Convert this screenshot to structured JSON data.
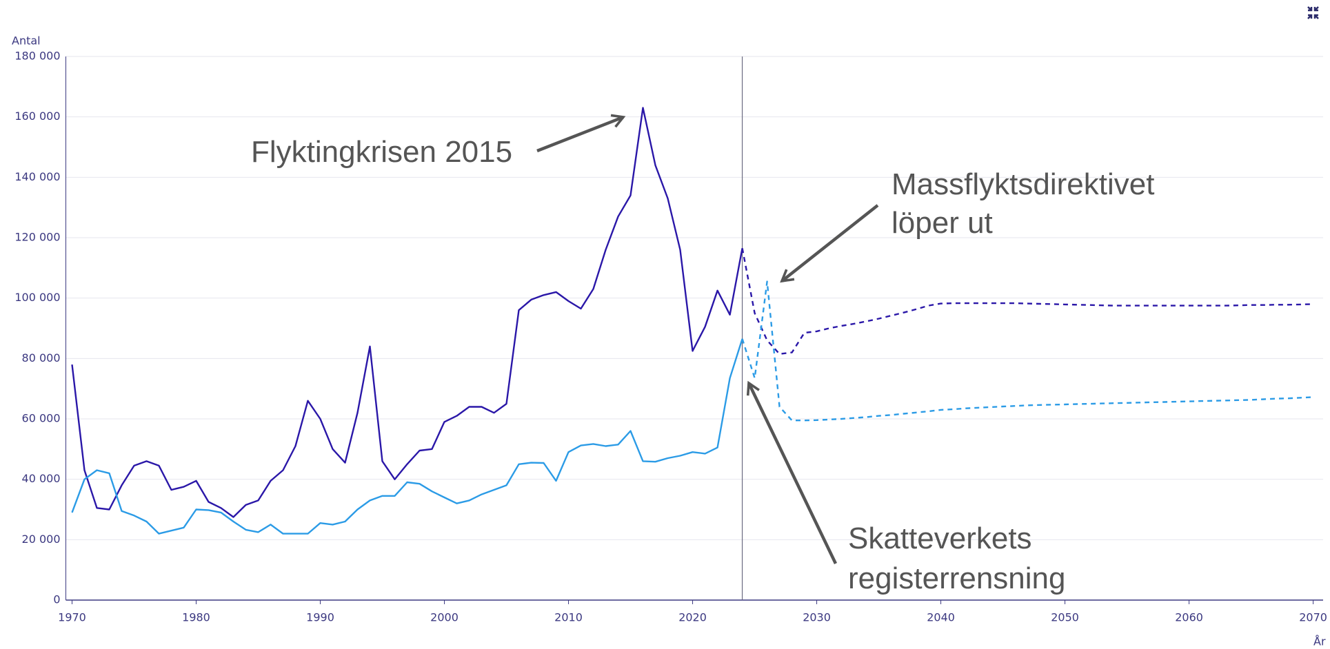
{
  "chart_data": {
    "type": "line",
    "y_axis_label": "Antal",
    "x_axis_label": "År",
    "x": [
      1970,
      1971,
      1972,
      1973,
      1974,
      1975,
      1976,
      1977,
      1978,
      1979,
      1980,
      1981,
      1982,
      1983,
      1984,
      1985,
      1986,
      1987,
      1988,
      1989,
      1990,
      1991,
      1992,
      1993,
      1994,
      1995,
      1996,
      1997,
      1998,
      1999,
      2000,
      2001,
      2002,
      2003,
      2004,
      2005,
      2006,
      2007,
      2008,
      2009,
      2010,
      2011,
      2012,
      2013,
      2014,
      2015,
      2016,
      2017,
      2018,
      2019,
      2020,
      2021,
      2022,
      2023,
      2024,
      2025,
      2026,
      2027,
      2028,
      2029,
      2030,
      2031,
      2032,
      2033,
      2034,
      2035,
      2036,
      2037,
      2038,
      2039,
      2040,
      2041,
      2042,
      2043,
      2044,
      2045,
      2046,
      2047,
      2048,
      2049,
      2050,
      2051,
      2052,
      2053,
      2054,
      2055,
      2056,
      2057,
      2058,
      2059,
      2060,
      2061,
      2062,
      2063,
      2064,
      2065,
      2066,
      2067,
      2068,
      2069,
      2070
    ],
    "series": [
      {
        "color": "#2a17a8",
        "values": [
          78000,
          43000,
          30500,
          30000,
          38000,
          44500,
          46000,
          44500,
          36500,
          37500,
          39500,
          32500,
          30500,
          27500,
          31500,
          33000,
          39500,
          43000,
          51000,
          66000,
          60000,
          50000,
          45500,
          62000,
          84000,
          46000,
          40000,
          45000,
          49500,
          50000,
          59000,
          61000,
          64000,
          64000,
          62000,
          65000,
          96000,
          99500,
          101000,
          102000,
          99000,
          96500,
          103000,
          116000,
          127000,
          134000,
          163000,
          144000,
          133000,
          116000,
          82500,
          90500,
          102500,
          94500,
          116500,
          95000,
          86000,
          81500,
          82000,
          88500,
          89000,
          90000,
          90800,
          91500,
          92300,
          93200,
          94200,
          95200,
          96300,
          97500,
          98200,
          98300,
          98300,
          98300,
          98300,
          98300,
          98300,
          98200,
          98100,
          98000,
          97900,
          97800,
          97700,
          97600,
          97500,
          97500,
          97500,
          97500,
          97500,
          97500,
          97500,
          97500,
          97500,
          97500,
          97600,
          97700,
          97700,
          97800,
          97800,
          97900,
          98000
        ]
      },
      {
        "color": "#2b9be6",
        "values": [
          29000,
          40000,
          43000,
          42000,
          29500,
          28000,
          26000,
          22000,
          23000,
          24000,
          30000,
          29800,
          29000,
          26000,
          23300,
          22500,
          25000,
          22000,
          22000,
          22000,
          25500,
          25000,
          26000,
          30000,
          33000,
          34500,
          34500,
          39000,
          38500,
          36000,
          34000,
          32000,
          33000,
          35000,
          36500,
          38000,
          45000,
          45500,
          45400,
          39500,
          49000,
          51200,
          51700,
          51000,
          51500,
          56000,
          46000,
          45800,
          47000,
          47800,
          49000,
          48500,
          50500,
          73500,
          86500,
          73500,
          105500,
          64000,
          59500,
          59500,
          59600,
          59800,
          60000,
          60300,
          60600,
          61000,
          61300,
          61700,
          62100,
          62500,
          63000,
          63200,
          63500,
          63700,
          63900,
          64100,
          64300,
          64500,
          64600,
          64700,
          64800,
          64900,
          65000,
          65100,
          65200,
          65300,
          65400,
          65500,
          65600,
          65700,
          65800,
          65900,
          66000,
          66100,
          66200,
          66300,
          66500,
          66700,
          66800,
          67000,
          67200
        ]
      }
    ],
    "dash_from_x": 2024,
    "vline": 2024,
    "xlim": [
      1969.5,
      2070.8
    ],
    "xticks": [
      1970,
      1980,
      1990,
      2000,
      2010,
      2020,
      2030,
      2040,
      2050,
      2060,
      2070
    ],
    "ylim": [
      0,
      180000
    ],
    "yticks": [
      0,
      {
        "value": 20000,
        "label": "20 000"
      },
      {
        "value": 40000,
        "label": "40 000"
      },
      {
        "value": 60000,
        "label": "60 000"
      },
      {
        "value": 80000,
        "label": "80 000"
      },
      {
        "value": 100000,
        "label": "100 000"
      },
      {
        "value": 120000,
        "label": "120 000"
      },
      {
        "value": 140000,
        "label": "140 000"
      },
      {
        "value": 160000,
        "label": "160 000"
      },
      {
        "value": 180000,
        "label": "180 000"
      }
    ],
    "grid": true,
    "annotations": [
      {
        "text": "Flyktingkrisen 2015"
      },
      {
        "lines": [
          "Massflyktsdirektivet",
          "löper ut"
        ]
      },
      {
        "lines": [
          "Skatteverkets",
          "registerrensning"
        ]
      }
    ]
  }
}
